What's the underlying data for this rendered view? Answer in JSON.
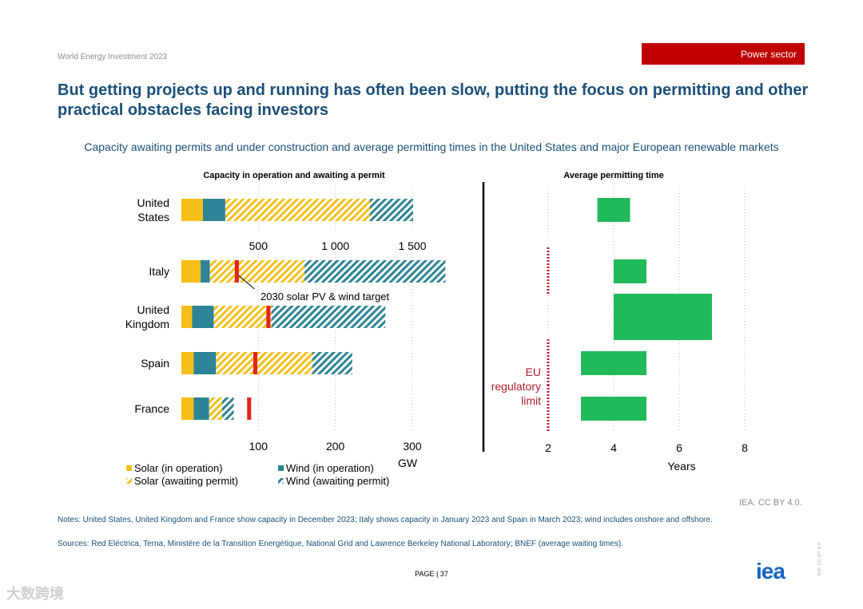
{
  "header": {
    "report_name": "World Energy Investment 2023",
    "section_tag": "Power sector",
    "headline": "But getting projects up and running has often been slow, putting the focus on permitting and other practical obstacles facing investors"
  },
  "colors": {
    "solar": "#f5bf1b",
    "wind": "#2e8496",
    "target": "#e32319",
    "permit_bar": "#21ba5a",
    "eu_limit": "#b11d2a",
    "tag_bg": "#c00000",
    "title_blue": "#1b4f7a"
  },
  "chart_data": [
    {
      "type": "bar",
      "orientation": "horizontal",
      "stacked": true,
      "title": "Capacity in operation and awaiting a permit",
      "categories": [
        "United States",
        "Italy",
        "United Kingdom",
        "Spain",
        "France"
      ],
      "category_display": [
        "United\nStates",
        "Italy",
        "United\nKingdom",
        "Spain",
        "France"
      ],
      "series": [
        {
          "name": "Solar (in operation)",
          "values": [
            140,
            25,
            14,
            16,
            16
          ]
        },
        {
          "name": "Wind (in operation)",
          "values": [
            145,
            12,
            28,
            29,
            20
          ]
        },
        {
          "name": "Solar (awaiting permit)",
          "values": [
            940,
            123,
            75,
            125,
            17
          ]
        },
        {
          "name": "Wind (awaiting permit)",
          "values": [
            280,
            183,
            148,
            52,
            15
          ]
        }
      ],
      "target_markers": {
        "label": "2030 solar PV & wind target",
        "values": [
          null,
          72,
          113,
          96,
          88
        ]
      },
      "axis_us": {
        "ticks": [
          500,
          1000,
          1500
        ],
        "tick_labels": [
          "500",
          "1 000",
          "1 500"
        ],
        "xlim": [
          0,
          1500
        ]
      },
      "axis_eu": {
        "ticks": [
          100,
          200,
          300
        ],
        "tick_labels": [
          "100",
          "200",
          "300"
        ],
        "xlim": [
          0,
          300
        ],
        "xlabel": "GW"
      },
      "legend": [
        "Solar (in operation)",
        "Wind (in operation)",
        "Solar (awaiting permit)",
        "Wind (awaiting permit)"
      ]
    },
    {
      "type": "bar",
      "orientation": "horizontal",
      "floating": true,
      "title": "Average permitting time",
      "categories": [
        "United States",
        "Italy",
        "United Kingdom",
        "Spain",
        "France"
      ],
      "ranges": [
        [
          3.5,
          4.5
        ],
        [
          4,
          5
        ],
        [
          4,
          7
        ],
        [
          3,
          5
        ],
        [
          3,
          5
        ]
      ],
      "xlabel": "Years",
      "xticks": [
        2,
        4,
        6,
        8
      ],
      "xlim": [
        1,
        9
      ],
      "grid": true,
      "reference": {
        "label": "EU regulatory limit",
        "label_lines": [
          "EU",
          "regulatory",
          "limit"
        ],
        "value": 2
      }
    }
  ],
  "footer": {
    "credit": "IEA. CC BY 4.0.",
    "notes": "Notes: United States, United Kingdom and France show capacity in December 2023; Italy shows capacity in January 2023 and Spain in March 2023; wind includes onshore and offshore.",
    "sources": "Sources: Red Eléctrica, Terna, Ministère de la Transition Energétique, National Grid and Lawrence Berkeley National Laboratory; BNEF (average waiting times).",
    "page_label": "PAGE | 37",
    "logo": "iea",
    "license_vertical": "IEA. CC BY 4.0",
    "watermark": "大数跨境"
  },
  "chart_title": "Capacity awaiting permits and under construction and average permitting times in the United States and major European renewable markets"
}
